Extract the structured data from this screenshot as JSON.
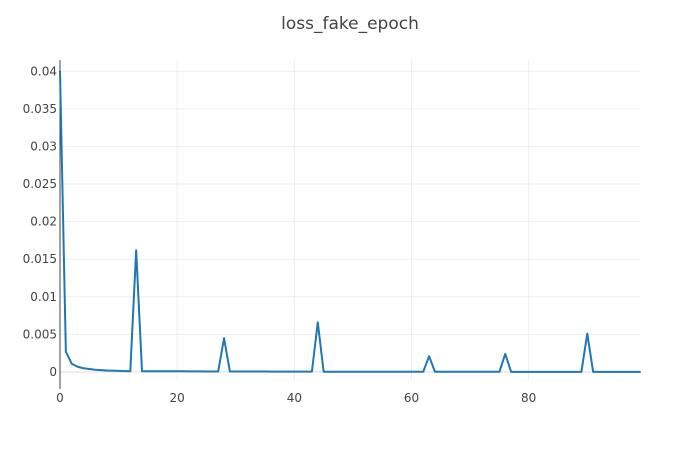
{
  "chart_data": {
    "type": "line",
    "title": "loss_fake_epoch",
    "xlabel": "",
    "ylabel": "",
    "xlim": [
      0,
      99
    ],
    "ylim": [
      -0.0012,
      0.0415
    ],
    "x_ticks": [
      0,
      20,
      40,
      60,
      80
    ],
    "x_tick_labels": [
      "0",
      "20",
      "40",
      "60",
      "80"
    ],
    "y_ticks": [
      0,
      0.005,
      0.01,
      0.015,
      0.02,
      0.025,
      0.03,
      0.035,
      0.04
    ],
    "y_tick_labels": [
      "0",
      "0.005",
      "0.01",
      "0.015",
      "0.02",
      "0.025",
      "0.03",
      "0.035",
      "0.04"
    ],
    "grid": true,
    "legend": "none",
    "colors": {
      "series": "#1f77b4",
      "grid": "#eeeeee",
      "axis": "#444444",
      "text": "#444444"
    },
    "series": [
      {
        "x": [
          0,
          1,
          2,
          3,
          4,
          5,
          6,
          7,
          8,
          9,
          10,
          11,
          12,
          13,
          14,
          15,
          16,
          17,
          18,
          19,
          20,
          21,
          22,
          23,
          24,
          25,
          26,
          27,
          28,
          29,
          30,
          31,
          32,
          33,
          34,
          35,
          36,
          37,
          38,
          39,
          40,
          41,
          42,
          43,
          44,
          45,
          46,
          47,
          48,
          49,
          50,
          51,
          52,
          53,
          54,
          55,
          56,
          57,
          58,
          59,
          60,
          61,
          62,
          63,
          64,
          65,
          66,
          67,
          68,
          69,
          70,
          71,
          72,
          73,
          74,
          75,
          76,
          77,
          78,
          79,
          80,
          81,
          82,
          83,
          84,
          85,
          86,
          87,
          88,
          89,
          90,
          91,
          92,
          93,
          94,
          95,
          96,
          97,
          98,
          99
        ],
        "values": [
          0.04,
          0.0027,
          0.0011,
          0.0007,
          0.0005,
          0.0004,
          0.0003,
          0.00025,
          0.0002,
          0.00018,
          0.00015,
          0.00012,
          0.0001,
          0.0162,
          0.0001,
          0.0001,
          0.0001,
          0.0001,
          0.0001,
          0.0001,
          0.0001,
          9e-05,
          8e-05,
          8e-05,
          8e-05,
          7e-05,
          7e-05,
          7e-05,
          0.0045,
          7e-05,
          7e-05,
          6e-05,
          6e-05,
          6e-05,
          6e-05,
          6e-05,
          5e-05,
          5e-05,
          5e-05,
          5e-05,
          5e-05,
          4e-05,
          4e-05,
          4e-05,
          0.0066,
          3e-05,
          3e-05,
          3e-05,
          3e-05,
          3e-05,
          3e-05,
          3e-05,
          3e-05,
          3e-05,
          3e-05,
          3e-05,
          3e-05,
          3e-05,
          3e-05,
          3e-05,
          3e-05,
          3e-05,
          3e-05,
          0.0021,
          3e-05,
          3e-05,
          3e-05,
          3e-05,
          3e-05,
          3e-05,
          3e-05,
          3e-05,
          3e-05,
          3e-05,
          3e-05,
          3e-05,
          0.0024,
          2e-05,
          2e-05,
          2e-05,
          2e-05,
          2e-05,
          2e-05,
          2e-05,
          2e-05,
          2e-05,
          2e-05,
          2e-05,
          2e-05,
          2e-05,
          0.0051,
          2e-05,
          2e-05,
          2e-05,
          2e-05,
          2e-05,
          2e-05,
          2e-05,
          2e-05,
          2e-05
        ]
      }
    ]
  }
}
